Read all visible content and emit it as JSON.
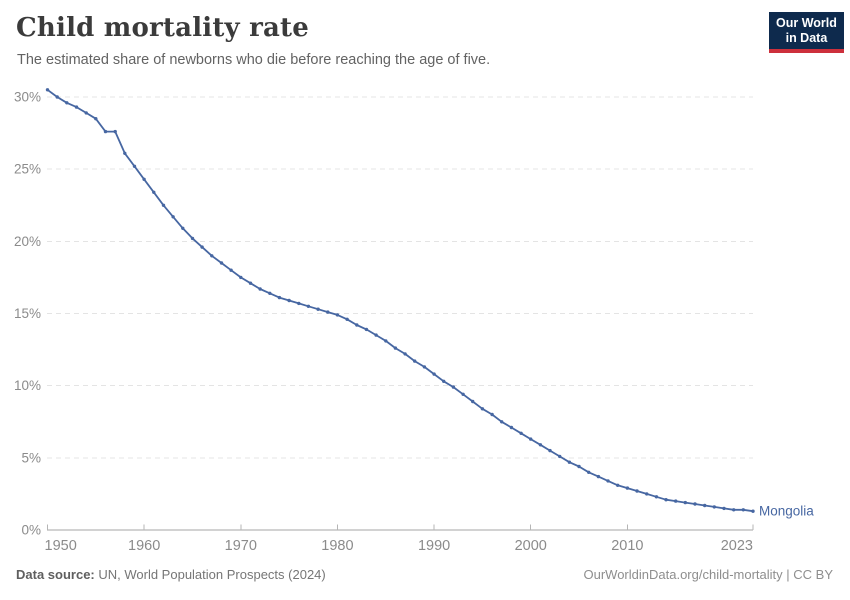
{
  "header": {
    "title": "Child mortality rate",
    "subtitle": "The estimated share of newborns who die before reaching the age of five.",
    "logo": {
      "line1": "Our World",
      "line2": "in Data",
      "bg_color": "#0e2a4d",
      "accent_color": "#cd303c"
    }
  },
  "footer": {
    "source_label": "Data source:",
    "source_text": " UN, World Population Prospects (2024)",
    "credit_text": "OurWorldinData.org/child-mortality | CC BY"
  },
  "chart_data": {
    "type": "line",
    "title": "Child mortality rate",
    "xlabel": "",
    "ylabel": "",
    "xlim": [
      1950,
      2023
    ],
    "ylim": [
      0,
      30
    ],
    "grid": "horizontal-dashed",
    "x_ticks": [
      1950,
      1960,
      1970,
      1980,
      1990,
      2000,
      2010,
      2023
    ],
    "y_ticks": [
      0,
      5,
      10,
      15,
      20,
      25,
      30
    ],
    "y_tick_suffix": "%",
    "series": [
      {
        "name": "Mongolia",
        "color": "#4767a2",
        "end_label": "Mongolia",
        "x": [
          1950,
          1951,
          1952,
          1953,
          1954,
          1955,
          1956,
          1957,
          1958,
          1959,
          1960,
          1961,
          1962,
          1963,
          1964,
          1965,
          1966,
          1967,
          1968,
          1969,
          1970,
          1971,
          1972,
          1973,
          1974,
          1975,
          1976,
          1977,
          1978,
          1979,
          1980,
          1981,
          1982,
          1983,
          1984,
          1985,
          1986,
          1987,
          1988,
          1989,
          1990,
          1991,
          1992,
          1993,
          1994,
          1995,
          1996,
          1997,
          1998,
          1999,
          2000,
          2001,
          2002,
          2003,
          2004,
          2005,
          2006,
          2007,
          2008,
          2009,
          2010,
          2011,
          2012,
          2013,
          2014,
          2015,
          2016,
          2017,
          2018,
          2019,
          2020,
          2021,
          2022,
          2023
        ],
        "values": [
          30.5,
          30.0,
          29.6,
          29.3,
          28.9,
          28.5,
          27.6,
          27.6,
          26.1,
          25.2,
          24.3,
          23.4,
          22.5,
          21.7,
          20.9,
          20.2,
          19.6,
          19.0,
          18.5,
          18.0,
          17.5,
          17.1,
          16.7,
          16.4,
          16.1,
          15.9,
          15.7,
          15.5,
          15.3,
          15.1,
          14.9,
          14.6,
          14.2,
          13.9,
          13.5,
          13.1,
          12.6,
          12.2,
          11.7,
          11.3,
          10.8,
          10.3,
          9.9,
          9.4,
          8.9,
          8.4,
          8.0,
          7.5,
          7.1,
          6.7,
          6.3,
          5.9,
          5.5,
          5.1,
          4.7,
          4.4,
          4.0,
          3.7,
          3.4,
          3.1,
          2.9,
          2.7,
          2.5,
          2.3,
          2.1,
          2.0,
          1.9,
          1.8,
          1.7,
          1.6,
          1.5,
          1.4,
          1.4,
          1.3
        ]
      }
    ]
  }
}
